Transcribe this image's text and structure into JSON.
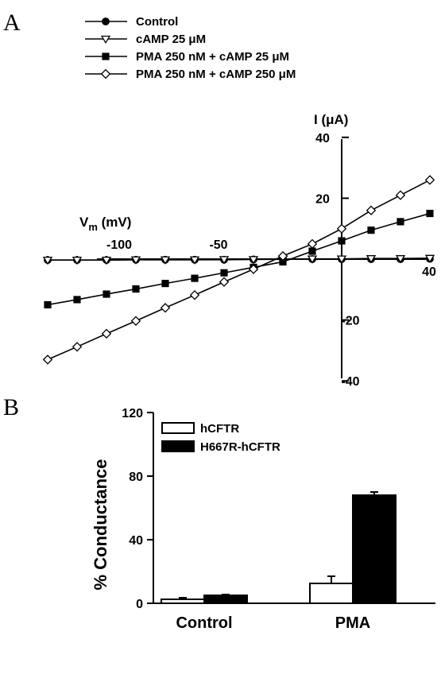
{
  "panels": {
    "a": "A",
    "b": "B"
  },
  "chart_data": [
    {
      "type": "line",
      "xlabel_main": "V",
      "xlabel_sub": "m",
      "xlabel_unit": " (mV)",
      "ylabel_prefix": "I (",
      "ylabel_mu": "μ",
      "ylabel_suffix": "A)",
      "xlim": [
        -102,
        48
      ],
      "ylim": [
        -40,
        40
      ],
      "x_ticks": [
        -100,
        -50,
        40
      ],
      "y_ticks": [
        40,
        20,
        -20,
        -40
      ],
      "legend_position": "top-left",
      "x": [
        -100,
        -90,
        -80,
        -70,
        -60,
        -50,
        -40,
        -30,
        -20,
        -10,
        0,
        10,
        20,
        30
      ],
      "series": [
        {
          "name": "Control",
          "marker": "circle-filled",
          "values": [
            -0.3,
            -0.3,
            -0.3,
            -0.2,
            -0.2,
            -0.2,
            -0.2,
            -0.1,
            -0.1,
            0,
            0,
            0,
            0,
            0.1
          ]
        },
        {
          "name": "cAMP 25 μM",
          "marker": "triangle-down-open",
          "values": [
            -0.3,
            -0.3,
            -0.3,
            -0.2,
            -0.2,
            -0.2,
            -0.1,
            -0.1,
            0,
            0.1,
            0.1,
            0.2,
            0.2,
            0.3
          ]
        },
        {
          "name": "PMA 250 nM + cAMP 25 μM",
          "marker": "square-filled",
          "values": [
            -15,
            -13.3,
            -11.5,
            -9.8,
            -8,
            -6.3,
            -4.5,
            -2.7,
            -0.9,
            2.6,
            6,
            9.5,
            12.3,
            15
          ]
        },
        {
          "name": "PMA 250 nM + cAMP 250 μM",
          "marker": "diamond-open",
          "values": [
            -33,
            -28.8,
            -24.5,
            -20.3,
            -16,
            -11.8,
            -7.5,
            -3.3,
            1,
            5,
            10,
            16,
            21,
            26
          ]
        }
      ]
    },
    {
      "type": "bar",
      "ylabel": "% Conductance",
      "ylim": [
        0,
        120
      ],
      "y_ticks": [
        0,
        40,
        80,
        120
      ],
      "categories": [
        "Control",
        "PMA"
      ],
      "legend_position": "top-left",
      "series": [
        {
          "name": "hCFTR",
          "fill": "#ffffff",
          "values": [
            2.5,
            12.5
          ],
          "errors": [
            1,
            4.5
          ]
        },
        {
          "name": "H667R-hCFTR",
          "fill": "#000000",
          "values": [
            5,
            68
          ],
          "errors": [
            0.5,
            2
          ]
        }
      ]
    }
  ]
}
